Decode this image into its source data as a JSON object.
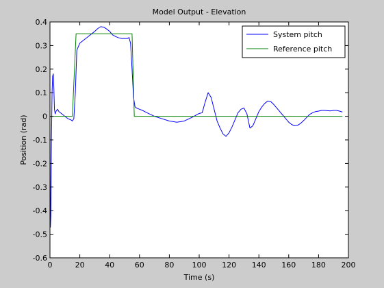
{
  "chart_data": {
    "type": "line",
    "title": "Model Output - Elevation",
    "xlabel": "Time (s)",
    "ylabel": "Position (rad)",
    "xlim": [
      0,
      200
    ],
    "ylim": [
      -0.6,
      0.4
    ],
    "xticks": [
      0,
      20,
      40,
      60,
      80,
      100,
      120,
      140,
      160,
      180,
      200
    ],
    "xtick_labels": [
      "0",
      "20",
      "40",
      "60",
      "80",
      "100",
      "120",
      "140",
      "160",
      "180",
      "200"
    ],
    "yticks": [
      0.4,
      0.3,
      0.2,
      0.1,
      0,
      -0.1,
      -0.2,
      -0.3,
      -0.4,
      -0.5,
      -0.6
    ],
    "ytick_labels": [
      "0.4",
      "0.3",
      "0.2",
      "0.1",
      "0",
      "-0.1",
      "-0.2",
      "-0.3",
      "-0.4",
      "-0.5",
      "-0.6"
    ],
    "grid": false,
    "legend_position": "top-right",
    "series": [
      {
        "name": "System pitch",
        "color": "#0000ff",
        "x": [
          0,
          0.3,
          0.6,
          1,
          1.4,
          1.8,
          2.2,
          2.6,
          3,
          3.5,
          4,
          5,
          6,
          8,
          10,
          12,
          14,
          15,
          16,
          17,
          18,
          20,
          22,
          25,
          28,
          30,
          32,
          34,
          36,
          38,
          40,
          42,
          44,
          46,
          48,
          50,
          52,
          53,
          54,
          55,
          56,
          57,
          58,
          60,
          62,
          65,
          70,
          75,
          80,
          85,
          90,
          95,
          100,
          102,
          104,
          106,
          108,
          110,
          112,
          114,
          116,
          118,
          120,
          122,
          124,
          126,
          128,
          130,
          132,
          134,
          136,
          138,
          140,
          142,
          144,
          146,
          148,
          150,
          152,
          154,
          156,
          158,
          160,
          162,
          164,
          166,
          168,
          170,
          172,
          174,
          176,
          178,
          180,
          182,
          184,
          186,
          188,
          190,
          192,
          194,
          196
        ],
        "y": [
          0,
          -0.47,
          -0.42,
          -0.1,
          0.1,
          0.17,
          0.18,
          0.12,
          0.03,
          0.01,
          0.02,
          0.03,
          0.02,
          0.01,
          0.0,
          -0.01,
          -0.015,
          -0.02,
          -0.01,
          0.1,
          0.28,
          0.31,
          0.32,
          0.335,
          0.35,
          0.36,
          0.372,
          0.38,
          0.378,
          0.37,
          0.36,
          0.345,
          0.338,
          0.333,
          0.33,
          0.33,
          0.33,
          0.334,
          0.31,
          0.2,
          0.08,
          0.04,
          0.035,
          0.03,
          0.025,
          0.015,
          0.0,
          -0.01,
          -0.02,
          -0.025,
          -0.02,
          -0.005,
          0.012,
          0.015,
          0.06,
          0.1,
          0.08,
          0.03,
          -0.02,
          -0.05,
          -0.075,
          -0.085,
          -0.07,
          -0.045,
          -0.015,
          0.015,
          0.03,
          0.035,
          0.01,
          -0.05,
          -0.04,
          -0.01,
          0.02,
          0.04,
          0.055,
          0.065,
          0.062,
          0.05,
          0.035,
          0.02,
          0.005,
          -0.01,
          -0.025,
          -0.035,
          -0.04,
          -0.038,
          -0.03,
          -0.018,
          -0.005,
          0.008,
          0.015,
          0.02,
          0.022,
          0.025,
          0.025,
          0.024,
          0.023,
          0.025,
          0.025,
          0.022,
          0.018
        ]
      },
      {
        "name": "Reference pitch",
        "color": "#008000",
        "x": [
          0,
          15,
          17.5,
          55,
          56.5,
          196
        ],
        "y": [
          0,
          0,
          0.35,
          0.35,
          0,
          0
        ]
      }
    ]
  }
}
